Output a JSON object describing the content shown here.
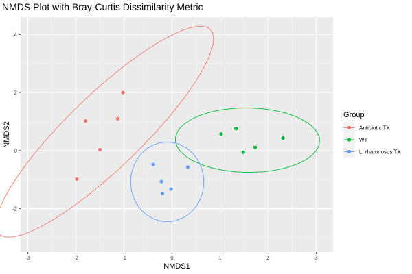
{
  "chart_data": {
    "type": "scatter",
    "title": "NMDS Plot with Bray-Curtis Dissimilarity Metric",
    "xlabel": "NMDS1",
    "ylabel": "NMDS2",
    "xlim": [
      -3.15,
      3.35
    ],
    "ylim": [
      -3.5,
      4.6
    ],
    "x_ticks": [
      -3,
      -2,
      -1,
      0,
      1,
      2,
      3
    ],
    "y_ticks": [
      -2,
      0,
      2,
      4
    ],
    "grid": true,
    "legend": {
      "title": "Group",
      "placement": "right"
    },
    "series": [
      {
        "name": "Antibiotic TX",
        "color": "#F8766D",
        "points": [
          {
            "x": -1.02,
            "y": 2.0
          },
          {
            "x": -1.13,
            "y": 1.1
          },
          {
            "x": -1.8,
            "y": 1.02
          },
          {
            "x": -1.5,
            "y": 0.03
          },
          {
            "x": -1.98,
            "y": -0.98
          }
        ],
        "ellipse": {
          "cx": -1.4,
          "cy": 0.65,
          "rx": 4.18,
          "ry": 0.93,
          "angle_deg": 59.6
        }
      },
      {
        "name": "WT",
        "color": "#00BA38",
        "points": [
          {
            "x": 1.02,
            "y": 0.57
          },
          {
            "x": 1.33,
            "y": 0.76
          },
          {
            "x": 1.48,
            "y": -0.06
          },
          {
            "x": 1.73,
            "y": 0.11
          },
          {
            "x": 2.31,
            "y": 0.43
          }
        ],
        "ellipse": {
          "cx": 1.57,
          "cy": 0.36,
          "rx": 1.5,
          "ry": 1.11,
          "angle_deg": -2
        }
      },
      {
        "name": "L. rhamnosus TX",
        "color": "#619CFF",
        "points": [
          {
            "x": -0.39,
            "y": -0.48
          },
          {
            "x": 0.33,
            "y": -0.57
          },
          {
            "x": -0.22,
            "y": -1.07
          },
          {
            "x": -0.02,
            "y": -1.33
          },
          {
            "x": -0.2,
            "y": -1.48
          }
        ],
        "ellipse": {
          "cx": -0.1,
          "cy": -1.08,
          "rx": 0.76,
          "ry": 1.37,
          "angle_deg": 0
        }
      }
    ]
  }
}
